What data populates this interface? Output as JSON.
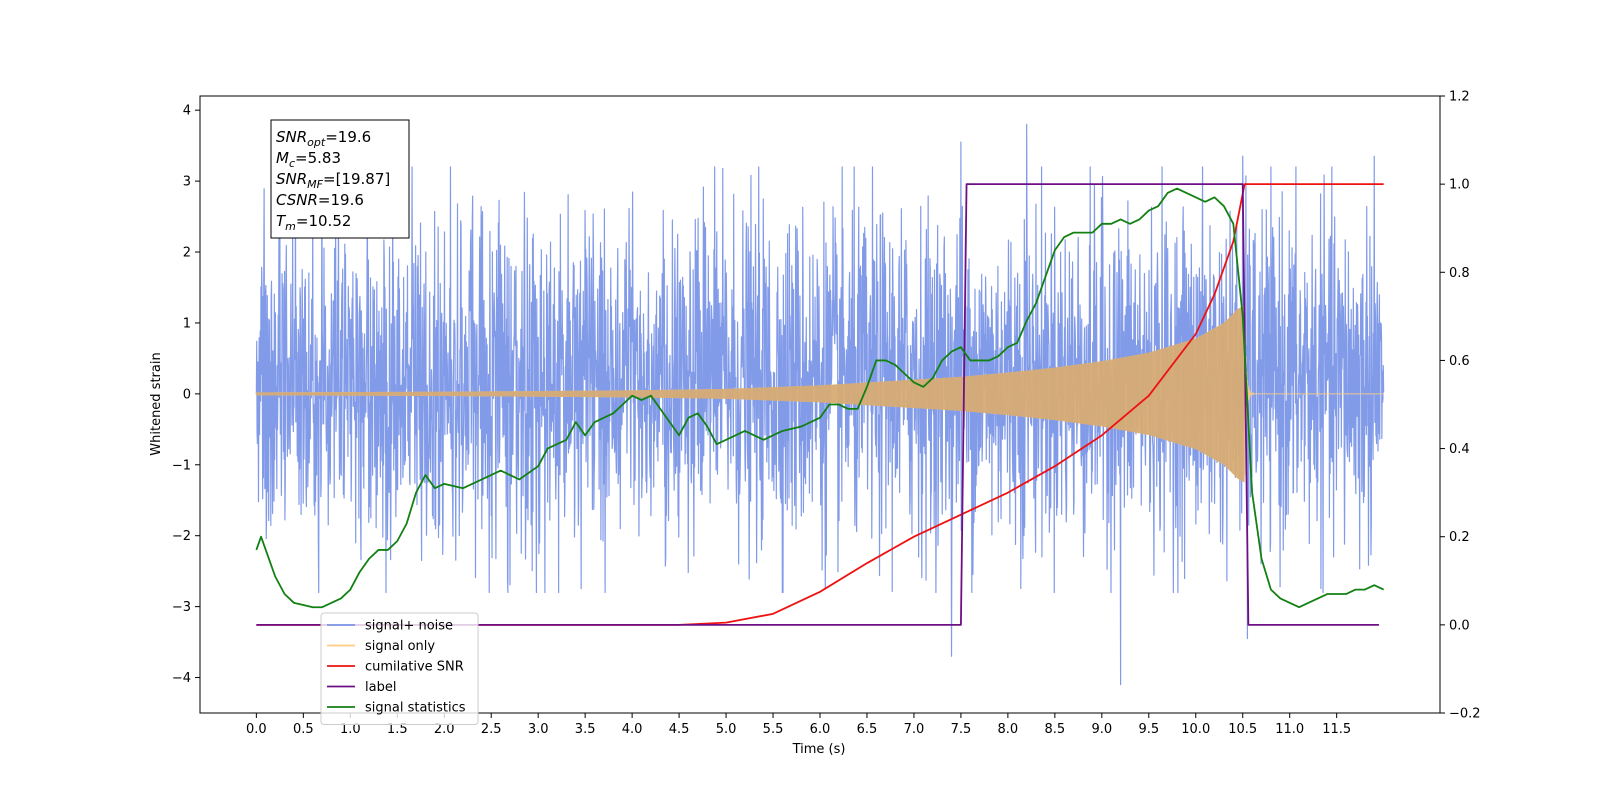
{
  "chart_data": {
    "type": "line",
    "xlabel": "Time (s)",
    "ylabel_left": "Whitened strain",
    "ylabel_right": "",
    "xlim": [
      -0.6,
      12.6
    ],
    "ylim_left": [
      -4.5,
      4.2
    ],
    "ylim_right": [
      -0.2,
      1.2
    ],
    "x_ticks": [
      0.0,
      0.5,
      1.0,
      1.5,
      2.0,
      2.5,
      3.0,
      3.5,
      4.0,
      4.5,
      5.0,
      5.5,
      6.0,
      6.5,
      7.0,
      7.5,
      8.0,
      8.5,
      9.0,
      9.5,
      10.0,
      10.5,
      11.0,
      11.5
    ],
    "x_tick_labels": [
      "0.0",
      "0.5",
      "1.0",
      "1.5",
      "2.0",
      "2.5",
      "3.0",
      "3.5",
      "4.0",
      "4.5",
      "5.0",
      "5.5",
      "6.0",
      "6.5",
      "7.0",
      "7.5",
      "8.0",
      "8.5",
      "9.0",
      "9.5",
      "10.0",
      "10.5",
      "11.0",
      "11.5"
    ],
    "y_left_ticks": [
      -4,
      -3,
      -2,
      -1,
      0,
      1,
      2,
      3,
      4
    ],
    "y_left_tick_labels": [
      "−4",
      "−3",
      "−2",
      "−1",
      "0",
      "1",
      "2",
      "3",
      "4"
    ],
    "y_right_ticks": [
      -0.2,
      0.0,
      0.2,
      0.4,
      0.6,
      0.8,
      1.0,
      1.2
    ],
    "y_right_tick_labels": [
      "−0.2",
      "0.0",
      "0.2",
      "0.4",
      "0.6",
      "0.8",
      "1.0",
      "1.2"
    ],
    "legend": {
      "placement": "lower-left",
      "entries": [
        {
          "label": "signal+ noise",
          "color": "#7b96e8"
        },
        {
          "label": "signal only",
          "color": "#ffcc80"
        },
        {
          "label": "cumilative SNR",
          "color": "#ee1111"
        },
        {
          "label": "label",
          "color": "#6f0f84"
        },
        {
          "label": "signal statistics",
          "color": "#128012"
        }
      ]
    },
    "series": [
      {
        "name": "signal+ noise",
        "axis": "left",
        "color": "#7b96e8",
        "kind": "whitened noise trace",
        "x_range": [
          0.0,
          12.0
        ],
        "typical_envelope": [
          -1.9,
          2.3
        ],
        "peaks": [
          [
            0.25,
            2.55
          ],
          [
            7.5,
            3.55
          ],
          [
            8.2,
            3.8
          ],
          [
            10.5,
            3.35
          ],
          [
            11.9,
            3.35
          ],
          [
            7.4,
            -3.7
          ],
          [
            9.2,
            -4.1
          ],
          [
            10.55,
            -3.45
          ]
        ]
      },
      {
        "name": "signal only",
        "axis": "left",
        "color": "#ffcc80",
        "kind": "chirp",
        "x_range": [
          0.0,
          12.0
        ],
        "merger_time": 10.52,
        "envelope": {
          "x": [
            0.0,
            2.0,
            4.0,
            5.0,
            6.0,
            6.5,
            7.0,
            7.5,
            8.0,
            8.5,
            9.0,
            9.5,
            10.0,
            10.3,
            10.45,
            10.52
          ],
          "amp": [
            0.02,
            0.03,
            0.05,
            0.07,
            0.12,
            0.16,
            0.2,
            0.24,
            0.3,
            0.37,
            0.46,
            0.58,
            0.78,
            1.0,
            1.2,
            1.25
          ]
        }
      },
      {
        "name": "cumilative SNR",
        "axis": "right",
        "color": "#ee1111",
        "x": [
          0.0,
          4.5,
          5.0,
          5.5,
          6.0,
          6.5,
          7.0,
          7.5,
          8.0,
          8.5,
          9.0,
          9.5,
          10.0,
          10.2,
          10.4,
          10.52,
          12.0
        ],
        "y": [
          0.0,
          0.0,
          0.005,
          0.025,
          0.075,
          0.14,
          0.2,
          0.25,
          0.3,
          0.36,
          0.43,
          0.52,
          0.66,
          0.75,
          0.87,
          1.0,
          1.0
        ]
      },
      {
        "name": "label",
        "axis": "right",
        "color": "#6f0f84",
        "x": [
          0.0,
          7.5,
          7.56,
          10.5,
          10.56,
          11.95
        ],
        "y": [
          0.0,
          0.0,
          1.0,
          1.0,
          0.0,
          0.0
        ]
      },
      {
        "name": "signal statistics",
        "axis": "right",
        "color": "#128012",
        "x": [
          0.0,
          0.05,
          0.1,
          0.2,
          0.3,
          0.4,
          0.5,
          0.6,
          0.7,
          0.8,
          0.9,
          1.0,
          1.1,
          1.2,
          1.3,
          1.4,
          1.5,
          1.6,
          1.7,
          1.8,
          1.9,
          2.0,
          2.2,
          2.4,
          2.6,
          2.8,
          3.0,
          3.1,
          3.2,
          3.3,
          3.4,
          3.5,
          3.6,
          3.7,
          3.8,
          3.9,
          4.0,
          4.1,
          4.2,
          4.3,
          4.4,
          4.5,
          4.6,
          4.7,
          4.8,
          4.9,
          5.0,
          5.2,
          5.4,
          5.5,
          5.6,
          5.8,
          6.0,
          6.1,
          6.2,
          6.3,
          6.4,
          6.5,
          6.6,
          6.7,
          6.8,
          6.9,
          7.0,
          7.1,
          7.2,
          7.3,
          7.4,
          7.5,
          7.6,
          7.7,
          7.8,
          7.9,
          8.0,
          8.1,
          8.2,
          8.3,
          8.4,
          8.5,
          8.6,
          8.7,
          8.8,
          8.9,
          9.0,
          9.1,
          9.2,
          9.3,
          9.4,
          9.5,
          9.6,
          9.7,
          9.8,
          9.9,
          10.0,
          10.1,
          10.2,
          10.3,
          10.4,
          10.5,
          10.6,
          10.7,
          10.8,
          10.9,
          11.0,
          11.1,
          11.2,
          11.3,
          11.4,
          11.5,
          11.6,
          11.7,
          11.8,
          11.9,
          12.0
        ],
        "y": [
          0.17,
          0.2,
          0.17,
          0.11,
          0.07,
          0.05,
          0.045,
          0.04,
          0.04,
          0.05,
          0.06,
          0.08,
          0.12,
          0.15,
          0.17,
          0.17,
          0.19,
          0.23,
          0.3,
          0.34,
          0.31,
          0.32,
          0.31,
          0.33,
          0.35,
          0.33,
          0.36,
          0.4,
          0.41,
          0.42,
          0.46,
          0.43,
          0.46,
          0.47,
          0.48,
          0.5,
          0.52,
          0.51,
          0.52,
          0.49,
          0.46,
          0.43,
          0.47,
          0.48,
          0.45,
          0.41,
          0.42,
          0.44,
          0.42,
          0.43,
          0.44,
          0.45,
          0.47,
          0.5,
          0.5,
          0.49,
          0.49,
          0.54,
          0.6,
          0.6,
          0.59,
          0.57,
          0.55,
          0.54,
          0.56,
          0.6,
          0.62,
          0.63,
          0.6,
          0.6,
          0.6,
          0.61,
          0.63,
          0.64,
          0.69,
          0.73,
          0.79,
          0.85,
          0.88,
          0.89,
          0.89,
          0.89,
          0.91,
          0.91,
          0.92,
          0.91,
          0.92,
          0.94,
          0.95,
          0.98,
          0.99,
          0.98,
          0.97,
          0.96,
          0.97,
          0.95,
          0.91,
          0.7,
          0.3,
          0.15,
          0.08,
          0.06,
          0.05,
          0.04,
          0.05,
          0.06,
          0.07,
          0.07,
          0.07,
          0.08,
          0.08,
          0.09,
          0.08
        ]
      }
    ],
    "info_box": {
      "placement": "top-left",
      "lines": [
        {
          "var": "SNR",
          "sub": "opt",
          "value": "=19.6"
        },
        {
          "var": "M",
          "sub": "c",
          "value": "=5.83"
        },
        {
          "var": "SNR",
          "sub": "MF",
          "value": "=[19.87]"
        },
        {
          "var": "CSNR",
          "sub": "",
          "value": "=19.6"
        },
        {
          "var": "T",
          "sub": "m",
          "value": "=10.52"
        }
      ]
    }
  }
}
